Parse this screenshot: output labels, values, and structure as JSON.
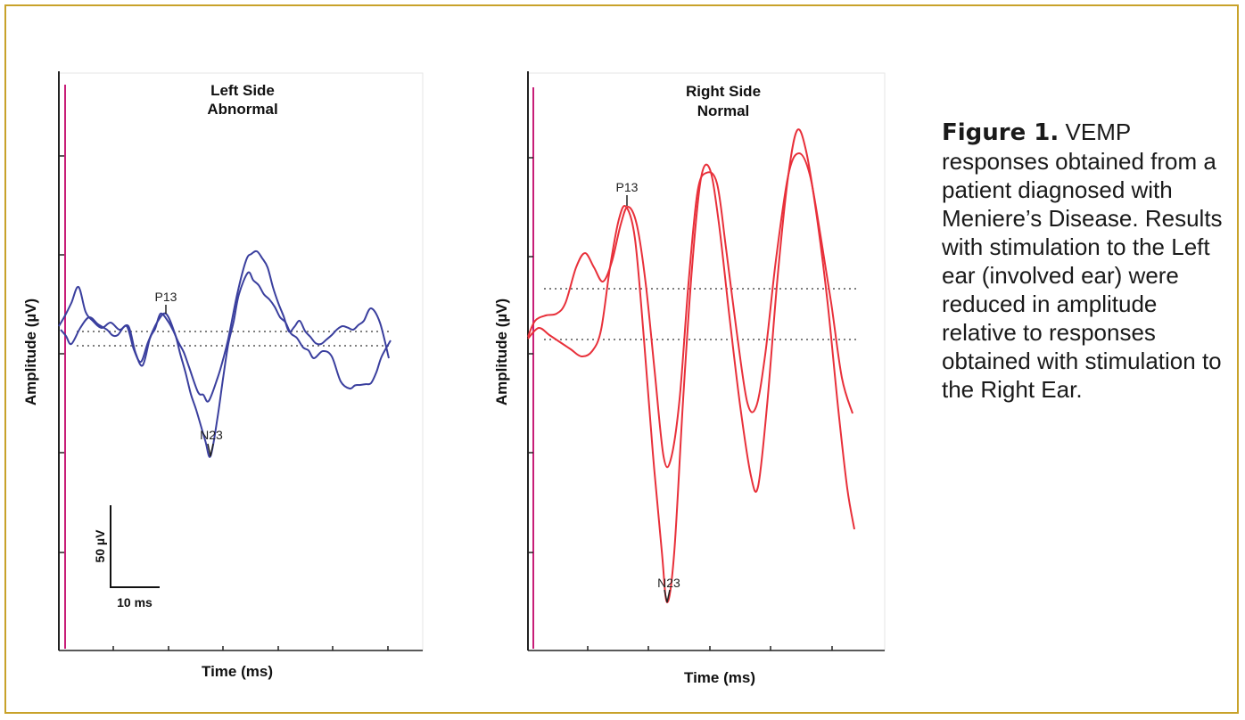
{
  "figure": {
    "label": "Figure 1.",
    "caption": "VEMP responses obtained from a patient diagnosed with Meniere’s Disease. Results with stimulation to the Left ear (involved ear) were reduced in amplitude relative to responses obtained with stimulation to the Right Ear."
  },
  "colors": {
    "frame": "#c8a22a",
    "left_trace": "#3a3f9e",
    "right_trace": "#e8303a",
    "stimulus_line": "#c81e78",
    "threshold": "#555555"
  },
  "chart_data": [
    {
      "type": "line",
      "title": "Left Side",
      "subtitle": "Abnormal",
      "xlabel": "Time (ms)",
      "ylabel": "Amplitude (µV)",
      "scale_bar": {
        "y_label": "50 µV",
        "x_label": "10 ms"
      },
      "peak_labels": [
        "P13",
        "N23"
      ],
      "threshold_lines": 2,
      "grid": false
    },
    {
      "type": "line",
      "title": "Right Side",
      "subtitle": "Normal",
      "xlabel": "Time (ms)",
      "ylabel": "Amplitude (µV)",
      "peak_labels": [
        "P13",
        "N23"
      ],
      "threshold_lines": 2,
      "grid": false
    }
  ]
}
